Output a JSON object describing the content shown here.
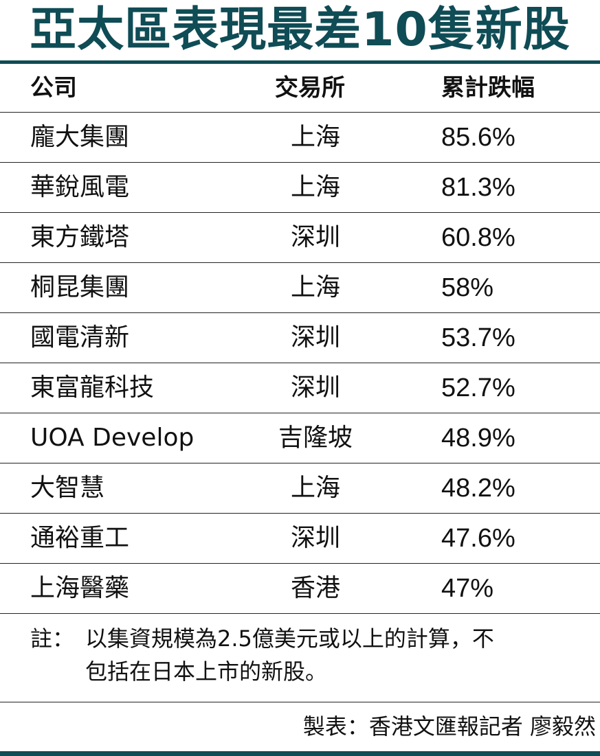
{
  "title": "亞太區表現最差10隻新股",
  "colors": {
    "accent": "#0f4c55"
  },
  "header": {
    "company": "公司",
    "exchange": "交易所",
    "drop": "累計跌幅"
  },
  "rows": [
    {
      "company": "龐大集團",
      "exchange": "上海",
      "drop": "85.6%"
    },
    {
      "company": "華銳風電",
      "exchange": "上海",
      "drop": "81.3%"
    },
    {
      "company": "東方鐵塔",
      "exchange": "深圳",
      "drop": "60.8%"
    },
    {
      "company": "桐昆集團",
      "exchange": "上海",
      "drop": "58%"
    },
    {
      "company": "國電清新",
      "exchange": "深圳",
      "drop": "53.7%"
    },
    {
      "company": "東富龍科技",
      "exchange": "深圳",
      "drop": "52.7%"
    },
    {
      "company": "UOA Develop",
      "exchange": "吉隆坡",
      "drop": "48.9%"
    },
    {
      "company": "大智慧",
      "exchange": "上海",
      "drop": "48.2%"
    },
    {
      "company": "通裕重工",
      "exchange": "深圳",
      "drop": "47.6%"
    },
    {
      "company": "上海醫藥",
      "exchange": "香港",
      "drop": "47%"
    }
  ],
  "note": {
    "label": "註：",
    "line1": "以集資規模為2.5億美元或以上的計算，不",
    "line2": "包括在日本上市的新股。"
  },
  "credit": "製表：香港文匯報記者 廖毅然"
}
